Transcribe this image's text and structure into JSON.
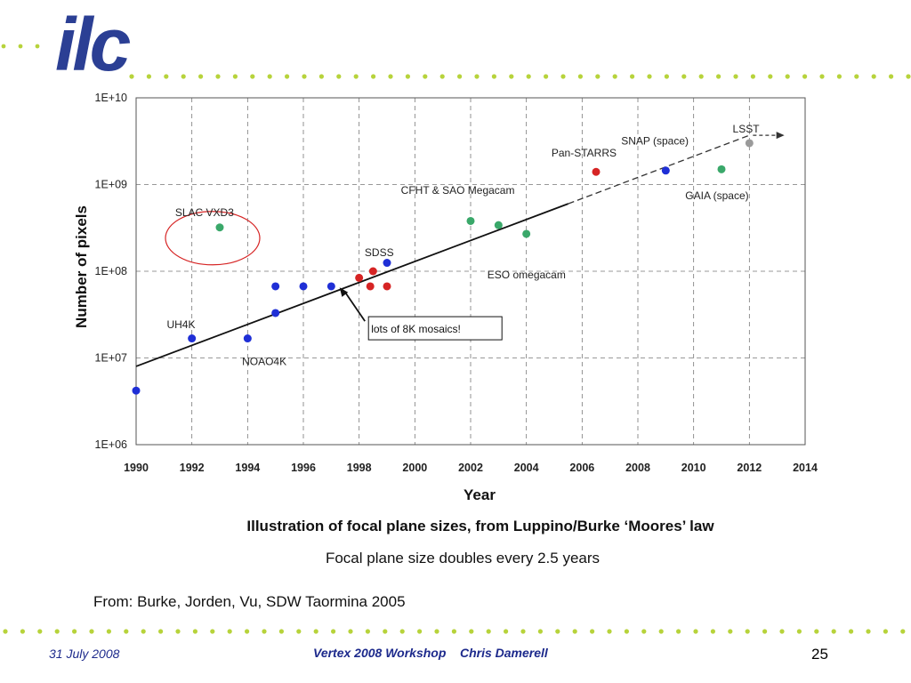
{
  "logo": {
    "text": "ilc"
  },
  "colors": {
    "accent": "#2b3f94",
    "dots": "#b7d33b"
  },
  "chart_data": {
    "type": "scatter",
    "xlabel": "Year",
    "ylabel": "Number of pixels",
    "xlim": [
      1990,
      2014
    ],
    "ylim": [
      1000000,
      10000000000
    ],
    "yscale": "log",
    "grid": true,
    "xticks": [
      1990,
      1992,
      1994,
      1996,
      1998,
      2000,
      2002,
      2004,
      2006,
      2008,
      2010,
      2012,
      2014
    ],
    "yticks": [
      {
        "value": 1000000,
        "label": "1E+06"
      },
      {
        "value": 10000000,
        "label": "1E+07"
      },
      {
        "value": 100000000,
        "label": "1E+08"
      },
      {
        "value": 1000000000,
        "label": "1E+09"
      },
      {
        "value": 10000000000,
        "label": "1E+10"
      }
    ],
    "points": [
      {
        "x": 1990,
        "y": 4200000,
        "color": "#1f2fd6"
      },
      {
        "x": 1992,
        "y": 16800000,
        "color": "#1f2fd6"
      },
      {
        "x": 1993,
        "y": 320000000,
        "color": "#3aa86a"
      },
      {
        "x": 1994,
        "y": 16800000,
        "color": "#1f2fd6"
      },
      {
        "x": 1995,
        "y": 33000000,
        "color": "#1f2fd6"
      },
      {
        "x": 1995,
        "y": 67000000,
        "color": "#1f2fd6"
      },
      {
        "x": 1996,
        "y": 67000000,
        "color": "#1f2fd6"
      },
      {
        "x": 1997,
        "y": 67000000,
        "color": "#1f2fd6"
      },
      {
        "x": 1998,
        "y": 84000000,
        "color": "#d62424"
      },
      {
        "x": 1998.4,
        "y": 67000000,
        "color": "#d62424"
      },
      {
        "x": 1998.5,
        "y": 100000000,
        "color": "#d62424"
      },
      {
        "x": 1999,
        "y": 67000000,
        "color": "#d62424"
      },
      {
        "x": 1999,
        "y": 125000000,
        "color": "#1f2fd6"
      },
      {
        "x": 2002,
        "y": 380000000,
        "color": "#3aa86a"
      },
      {
        "x": 2003,
        "y": 340000000,
        "color": "#3aa86a"
      },
      {
        "x": 2004,
        "y": 270000000,
        "color": "#3aa86a"
      },
      {
        "x": 2006.5,
        "y": 1400000000,
        "color": "#d62424"
      },
      {
        "x": 2009,
        "y": 1450000000,
        "color": "#1f2fd6"
      },
      {
        "x": 2011,
        "y": 1500000000,
        "color": "#3aa86a"
      },
      {
        "x": 2012,
        "y": 3000000000,
        "color": "#9a9a9a"
      }
    ],
    "trend_solid": {
      "x": [
        1990,
        2005.5
      ],
      "y": [
        8000000,
        600000000
      ]
    },
    "trend_dashed": {
      "x": [
        2005.5,
        2012
      ],
      "y": [
        600000000,
        3700000000
      ]
    },
    "arrow_target_year": 2013,
    "annotations": [
      {
        "text": "SLAC VXD3",
        "x": 1991.4,
        "y": 430000000
      },
      {
        "text": "UH4K",
        "x": 1991.1,
        "y": 22000000
      },
      {
        "text": "NOAO4K",
        "x": 1993.8,
        "y": 8300000
      },
      {
        "text": "SDSS",
        "x": 1998.2,
        "y": 150000000
      },
      {
        "text": "CFHT & SAO Megacam",
        "x": 1999.5,
        "y": 780000000
      },
      {
        "text": "ESO omegacam",
        "x": 2002.6,
        "y": 83000000
      },
      {
        "text": "Pan-STARRS",
        "x": 2004.9,
        "y": 2100000000
      },
      {
        "text": "SNAP (space)",
        "x": 2007.4,
        "y": 2900000000
      },
      {
        "text": "LSST",
        "x": 2011.4,
        "y": 4000000000
      },
      {
        "text": "GAIA (space)",
        "x": 2009.7,
        "y": 680000000
      }
    ],
    "callout": {
      "text": "lots of 8K mosaics!",
      "x": 1998.4,
      "y": 21000000,
      "arrow_to_x": 1997.3,
      "arrow_to_y": 65000000
    },
    "highlight_circle": {
      "x": 1993,
      "y": 320000000
    }
  },
  "captions": {
    "title": "Illustration of focal plane sizes, from Luppino/Burke ‘Moores’ law",
    "subtitle": "Focal plane size doubles every 2.5 years",
    "source": "From: Burke, Jorden, Vu,  SDW Taormina 2005"
  },
  "footer": {
    "date": "31 July 2008",
    "center": "Vertex 2008 Workshop    Chris Damerell",
    "page": "25"
  }
}
